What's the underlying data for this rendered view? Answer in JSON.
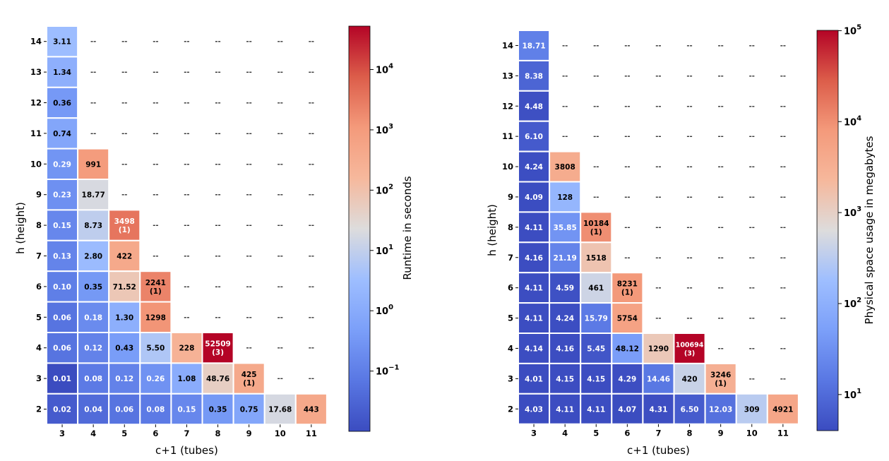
{
  "chart_data": [
    {
      "type": "heatmap",
      "xlabel": "c+1 (tubes)",
      "ylabel": "h (height)",
      "x_categories": [
        "3",
        "4",
        "5",
        "6",
        "7",
        "8",
        "9",
        "10",
        "11"
      ],
      "y_categories": [
        "14",
        "13",
        "12",
        "11",
        "10",
        "9",
        "8",
        "7",
        "6",
        "5",
        "4",
        "3",
        "2"
      ],
      "empty_label": "--",
      "scale": "log",
      "colormap": "coolwarm",
      "colorbar": {
        "label": "Runtime in seconds",
        "vmin": 0.01,
        "vmax": 52509,
        "ticks": [
          {
            "value": 0.1,
            "base": "10",
            "exp": "−1"
          },
          {
            "value": 1,
            "base": "10",
            "exp": "0"
          },
          {
            "value": 10,
            "base": "10",
            "exp": "1"
          },
          {
            "value": 100,
            "base": "10",
            "exp": "2"
          },
          {
            "value": 1000,
            "base": "10",
            "exp": "3"
          },
          {
            "value": 10000,
            "base": "10",
            "exp": "4"
          }
        ]
      },
      "cells": [
        {
          "x": "3",
          "y": "14",
          "value": 3.11,
          "label": "3.11"
        },
        {
          "x": "3",
          "y": "13",
          "value": 1.34,
          "label": "1.34"
        },
        {
          "x": "3",
          "y": "12",
          "value": 0.36,
          "label": "0.36"
        },
        {
          "x": "3",
          "y": "11",
          "value": 0.74,
          "label": "0.74"
        },
        {
          "x": "3",
          "y": "10",
          "value": 0.29,
          "label": "0.29"
        },
        {
          "x": "3",
          "y": "9",
          "value": 0.23,
          "label": "0.23"
        },
        {
          "x": "3",
          "y": "8",
          "value": 0.15,
          "label": "0.15"
        },
        {
          "x": "3",
          "y": "7",
          "value": 0.13,
          "label": "0.13"
        },
        {
          "x": "3",
          "y": "6",
          "value": 0.1,
          "label": "0.10"
        },
        {
          "x": "3",
          "y": "5",
          "value": 0.06,
          "label": "0.06"
        },
        {
          "x": "3",
          "y": "4",
          "value": 0.06,
          "label": "0.06"
        },
        {
          "x": "3",
          "y": "3",
          "value": 0.01,
          "label": "0.01"
        },
        {
          "x": "3",
          "y": "2",
          "value": 0.02,
          "label": "0.02"
        },
        {
          "x": "4",
          "y": "10",
          "value": 991,
          "label": "991"
        },
        {
          "x": "4",
          "y": "9",
          "value": 18.77,
          "label": "18.77"
        },
        {
          "x": "4",
          "y": "8",
          "value": 8.73,
          "label": "8.73"
        },
        {
          "x": "4",
          "y": "7",
          "value": 2.8,
          "label": "2.80"
        },
        {
          "x": "4",
          "y": "6",
          "value": 0.35,
          "label": "0.35"
        },
        {
          "x": "4",
          "y": "5",
          "value": 0.18,
          "label": "0.18"
        },
        {
          "x": "4",
          "y": "4",
          "value": 0.12,
          "label": "0.12"
        },
        {
          "x": "4",
          "y": "3",
          "value": 0.08,
          "label": "0.08"
        },
        {
          "x": "4",
          "y": "2",
          "value": 0.04,
          "label": "0.04"
        },
        {
          "x": "5",
          "y": "8",
          "value": 3498,
          "label": "3498",
          "sublabel": "(1)"
        },
        {
          "x": "5",
          "y": "7",
          "value": 422,
          "label": "422"
        },
        {
          "x": "5",
          "y": "6",
          "value": 71.52,
          "label": "71.52"
        },
        {
          "x": "5",
          "y": "5",
          "value": 1.3,
          "label": "1.30"
        },
        {
          "x": "5",
          "y": "4",
          "value": 0.43,
          "label": "0.43"
        },
        {
          "x": "5",
          "y": "3",
          "value": 0.12,
          "label": "0.12"
        },
        {
          "x": "5",
          "y": "2",
          "value": 0.06,
          "label": "0.06"
        },
        {
          "x": "6",
          "y": "6",
          "value": 2241,
          "label": "2241",
          "sublabel": "(1)"
        },
        {
          "x": "6",
          "y": "5",
          "value": 1298,
          "label": "1298"
        },
        {
          "x": "6",
          "y": "4",
          "value": 5.5,
          "label": "5.50"
        },
        {
          "x": "6",
          "y": "3",
          "value": 0.26,
          "label": "0.26"
        },
        {
          "x": "6",
          "y": "2",
          "value": 0.08,
          "label": "0.08"
        },
        {
          "x": "7",
          "y": "4",
          "value": 228,
          "label": "228"
        },
        {
          "x": "7",
          "y": "3",
          "value": 1.08,
          "label": "1.08"
        },
        {
          "x": "7",
          "y": "2",
          "value": 0.15,
          "label": "0.15"
        },
        {
          "x": "8",
          "y": "4",
          "value": 52509,
          "label": "52509",
          "sublabel": "(3)"
        },
        {
          "x": "8",
          "y": "3",
          "value": 48.76,
          "label": "48.76"
        },
        {
          "x": "8",
          "y": "2",
          "value": 0.35,
          "label": "0.35"
        },
        {
          "x": "9",
          "y": "3",
          "value": 425,
          "label": "425",
          "sublabel": "(1)"
        },
        {
          "x": "9",
          "y": "2",
          "value": 0.75,
          "label": "0.75"
        },
        {
          "x": "10",
          "y": "2",
          "value": 17.68,
          "label": "17.68"
        },
        {
          "x": "11",
          "y": "2",
          "value": 443,
          "label": "443"
        }
      ]
    },
    {
      "type": "heatmap",
      "xlabel": "c+1 (tubes)",
      "ylabel": "h (height)",
      "x_categories": [
        "3",
        "4",
        "5",
        "6",
        "7",
        "8",
        "9",
        "10",
        "11"
      ],
      "y_categories": [
        "14",
        "13",
        "12",
        "11",
        "10",
        "9",
        "8",
        "7",
        "6",
        "5",
        "4",
        "3",
        "2"
      ],
      "empty_label": "--",
      "scale": "log",
      "colormap": "coolwarm",
      "colorbar": {
        "label": "Physical space usage in megabytes",
        "vmin": 4.01,
        "vmax": 100694,
        "ticks": [
          {
            "value": 10,
            "base": "10",
            "exp": "1"
          },
          {
            "value": 100,
            "base": "10",
            "exp": "2"
          },
          {
            "value": 1000,
            "base": "10",
            "exp": "3"
          },
          {
            "value": 10000,
            "base": "10",
            "exp": "4"
          },
          {
            "value": 100000,
            "base": "10",
            "exp": "5"
          }
        ]
      },
      "cells": [
        {
          "x": "3",
          "y": "14",
          "value": 18.71,
          "label": "18.71"
        },
        {
          "x": "3",
          "y": "13",
          "value": 8.38,
          "label": "8.38"
        },
        {
          "x": "3",
          "y": "12",
          "value": 4.48,
          "label": "4.48"
        },
        {
          "x": "3",
          "y": "11",
          "value": 6.1,
          "label": "6.10"
        },
        {
          "x": "3",
          "y": "10",
          "value": 4.24,
          "label": "4.24"
        },
        {
          "x": "3",
          "y": "9",
          "value": 4.09,
          "label": "4.09"
        },
        {
          "x": "3",
          "y": "8",
          "value": 4.11,
          "label": "4.11"
        },
        {
          "x": "3",
          "y": "7",
          "value": 4.16,
          "label": "4.16"
        },
        {
          "x": "3",
          "y": "6",
          "value": 4.11,
          "label": "4.11"
        },
        {
          "x": "3",
          "y": "5",
          "value": 4.11,
          "label": "4.11"
        },
        {
          "x": "3",
          "y": "4",
          "value": 4.14,
          "label": "4.14"
        },
        {
          "x": "3",
          "y": "3",
          "value": 4.01,
          "label": "4.01"
        },
        {
          "x": "3",
          "y": "2",
          "value": 4.03,
          "label": "4.03"
        },
        {
          "x": "4",
          "y": "10",
          "value": 3808,
          "label": "3808"
        },
        {
          "x": "4",
          "y": "9",
          "value": 128,
          "label": "128"
        },
        {
          "x": "4",
          "y": "8",
          "value": 35.85,
          "label": "35.85"
        },
        {
          "x": "4",
          "y": "7",
          "value": 21.19,
          "label": "21.19"
        },
        {
          "x": "4",
          "y": "6",
          "value": 4.59,
          "label": "4.59"
        },
        {
          "x": "4",
          "y": "5",
          "value": 4.24,
          "label": "4.24"
        },
        {
          "x": "4",
          "y": "4",
          "value": 4.16,
          "label": "4.16"
        },
        {
          "x": "4",
          "y": "3",
          "value": 4.15,
          "label": "4.15"
        },
        {
          "x": "4",
          "y": "2",
          "value": 4.11,
          "label": "4.11"
        },
        {
          "x": "5",
          "y": "8",
          "value": 10184,
          "label": "10184",
          "sublabel": "(1)"
        },
        {
          "x": "5",
          "y": "7",
          "value": 1518,
          "label": "1518"
        },
        {
          "x": "5",
          "y": "6",
          "value": 461,
          "label": "461"
        },
        {
          "x": "5",
          "y": "5",
          "value": 15.79,
          "label": "15.79"
        },
        {
          "x": "5",
          "y": "4",
          "value": 5.45,
          "label": "5.45"
        },
        {
          "x": "5",
          "y": "3",
          "value": 4.15,
          "label": "4.15"
        },
        {
          "x": "5",
          "y": "2",
          "value": 4.11,
          "label": "4.11"
        },
        {
          "x": "6",
          "y": "6",
          "value": 8231,
          "label": "8231",
          "sublabel": "(1)"
        },
        {
          "x": "6",
          "y": "5",
          "value": 5754,
          "label": "5754"
        },
        {
          "x": "6",
          "y": "4",
          "value": 48.12,
          "label": "48.12"
        },
        {
          "x": "6",
          "y": "3",
          "value": 4.29,
          "label": "4.29"
        },
        {
          "x": "6",
          "y": "2",
          "value": 4.07,
          "label": "4.07"
        },
        {
          "x": "7",
          "y": "4",
          "value": 1290,
          "label": "1290"
        },
        {
          "x": "7",
          "y": "3",
          "value": 14.46,
          "label": "14.46"
        },
        {
          "x": "7",
          "y": "2",
          "value": 4.31,
          "label": "4.31"
        },
        {
          "x": "8",
          "y": "4",
          "value": 100694,
          "label": "100694",
          "sublabel": "(3)"
        },
        {
          "x": "8",
          "y": "3",
          "value": 420,
          "label": "420"
        },
        {
          "x": "8",
          "y": "2",
          "value": 6.5,
          "label": "6.50"
        },
        {
          "x": "9",
          "y": "3",
          "value": 3246,
          "label": "3246",
          "sublabel": "(1)"
        },
        {
          "x": "9",
          "y": "2",
          "value": 12.03,
          "label": "12.03"
        },
        {
          "x": "10",
          "y": "2",
          "value": 309,
          "label": "309"
        },
        {
          "x": "11",
          "y": "2",
          "value": 4921,
          "label": "4921"
        }
      ]
    }
  ]
}
